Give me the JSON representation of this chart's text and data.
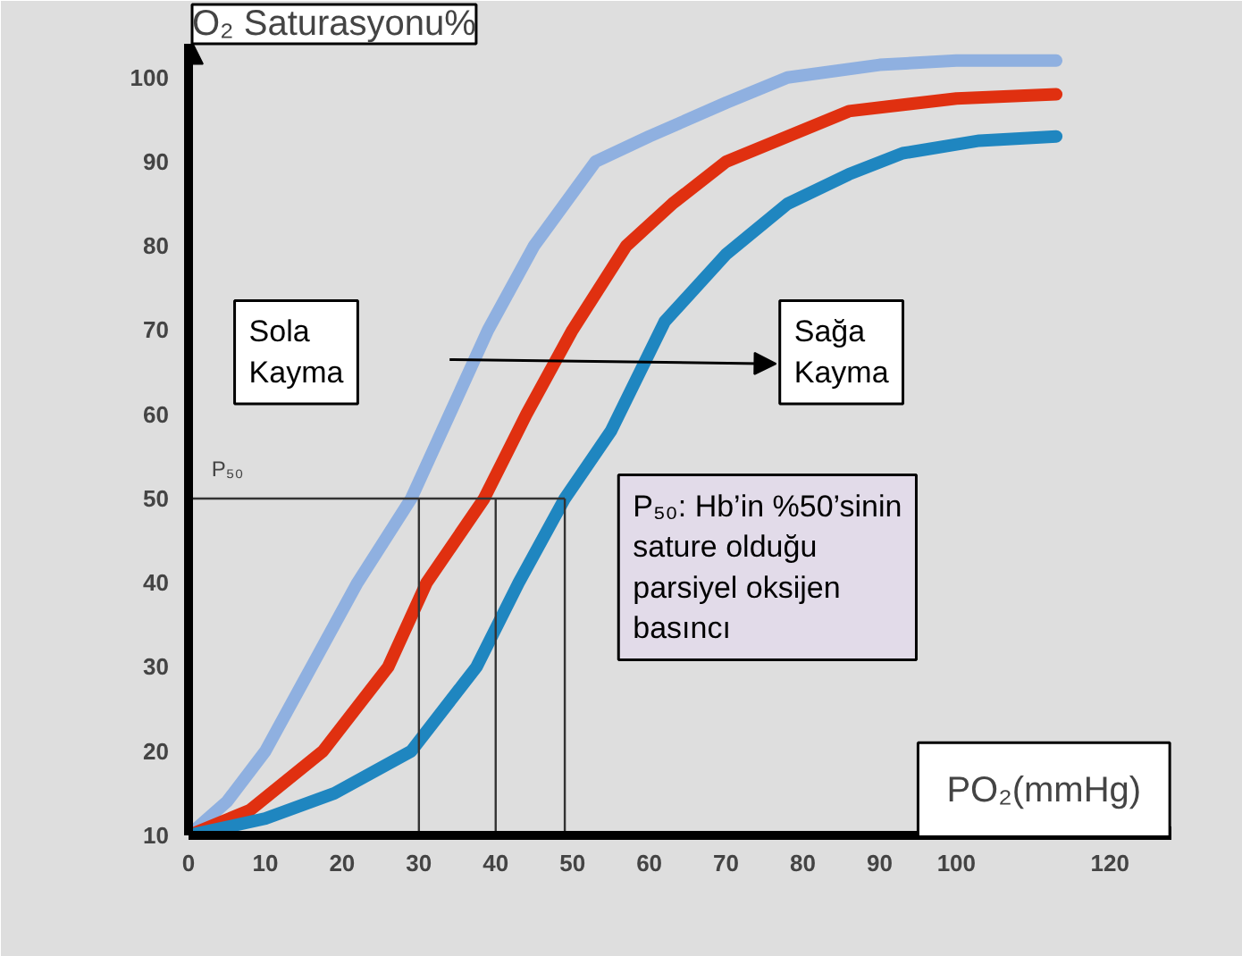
{
  "chart_data": {
    "type": "line",
    "xlabel": "PO₂(mmHg)",
    "ylabel": "O₂ Saturasyonu%",
    "series": [
      {
        "color": "#8fb0e0",
        "x": [
          0,
          5,
          10,
          16,
          22,
          29,
          34,
          39,
          45,
          53,
          60,
          70,
          78,
          90,
          100,
          113
        ],
        "values": [
          10,
          14,
          20,
          30,
          40,
          50,
          60,
          70,
          80,
          90,
          93,
          97,
          100,
          101.5,
          102,
          102
        ]
      },
      {
        "color": "#e03010",
        "x": [
          0,
          8,
          17.5,
          26,
          31,
          38.5,
          44,
          50,
          57,
          63,
          70,
          78,
          86,
          100,
          113
        ],
        "values": [
          10,
          13,
          20,
          30,
          40,
          50,
          60,
          70,
          80,
          85,
          90,
          93,
          96,
          97.5,
          98
        ]
      },
      {
        "color": "#1f86c0",
        "x": [
          0,
          10,
          19,
          29,
          37.5,
          43,
          49,
          55,
          62,
          70,
          78,
          86,
          93,
          103,
          113
        ],
        "values": [
          10,
          12,
          15,
          20,
          30,
          40,
          50,
          58,
          71,
          79,
          85,
          88.5,
          91,
          92.5,
          93
        ]
      }
    ],
    "xlim": [
      0,
      128
    ],
    "xticks": [
      0,
      10,
      20,
      30,
      40,
      50,
      60,
      70,
      80,
      90,
      100,
      120
    ],
    "ylim": [
      10,
      104
    ],
    "yticks": [
      10,
      20,
      30,
      40,
      50,
      60,
      70,
      80,
      90,
      100
    ],
    "ref_lines": [
      {
        "axis": "y",
        "value": 50,
        "label": "P₅₀",
        "color": "#333333"
      },
      {
        "axis": "x",
        "value": 30,
        "color": "#333333"
      },
      {
        "axis": "x",
        "value": 40,
        "color": "#333333"
      },
      {
        "axis": "x",
        "value": 49,
        "color": "#333333"
      }
    ],
    "annotations": [
      "Sola\nKayma",
      "Sağa\nKayma",
      "P₅₀: Hb’in %50’sinin\nsature olduğu\nparsiyel  oksijen\nbasıncı"
    ],
    "grid": false,
    "marker": "none",
    "line_style": "solid"
  }
}
